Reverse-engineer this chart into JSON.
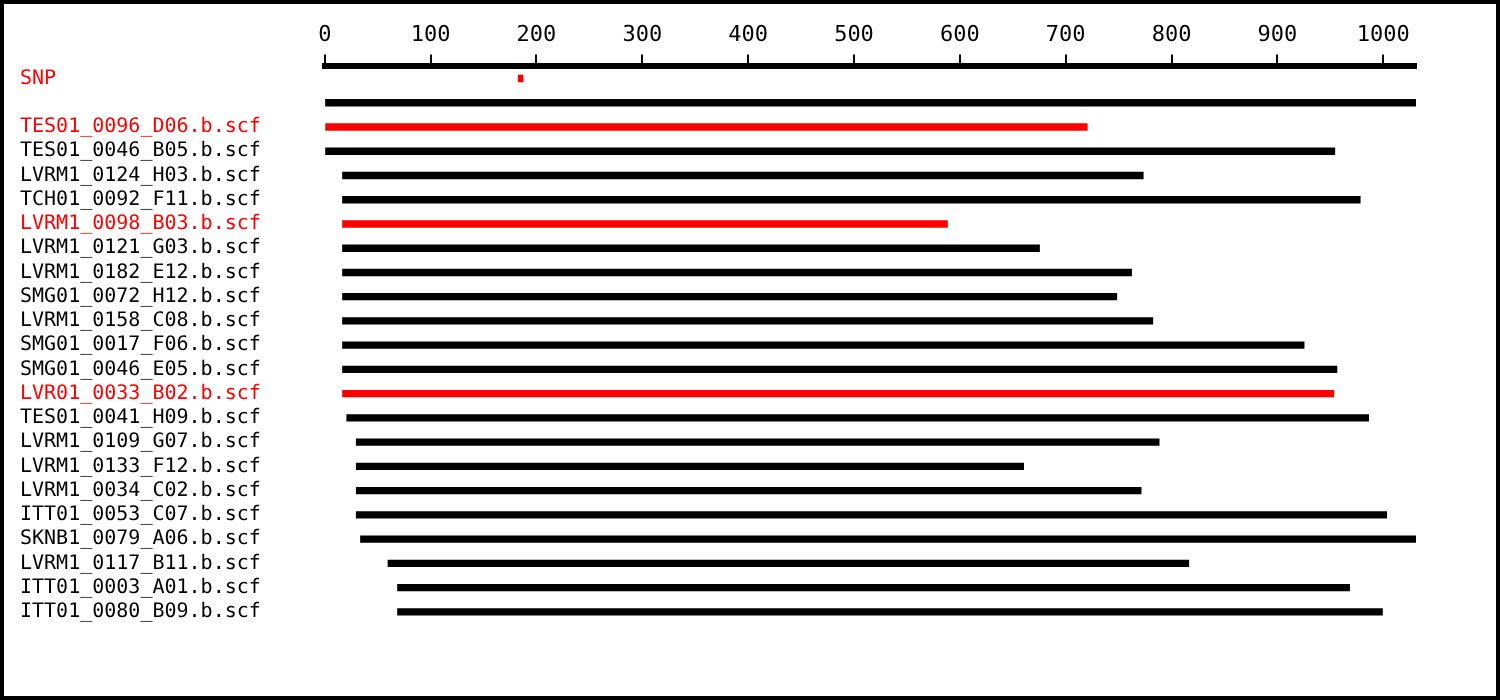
{
  "chart_data": {
    "type": "bar",
    "orientation": "horizontal",
    "categories": [
      "SNP",
      null,
      "TES01_0096_D06.b.scf",
      "TES01_0046_B05.b.scf",
      "LVRM1_0124_H03.b.scf",
      "TCH01_0092_F11.b.scf",
      "LVRM1_0098_B03.b.scf",
      "LVRM1_0121_G03.b.scf",
      "LVRM1_0182_E12.b.scf",
      "SMG01_0072_H12.b.scf",
      "LVRM1_0158_C08.b.scf",
      "SMG01_0017_F06.b.scf",
      "SMG01_0046_E05.b.scf",
      "LVR01_0033_B02.b.scf",
      "TES01_0041_H09.b.scf",
      "LVRM1_0109_G07.b.scf",
      "LVRM1_0133_F12.b.scf",
      "LVRM1_0034_C02.b.scf",
      "ITT01_0053_C07.b.scf",
      "SKNB1_0079_A06.b.scf",
      "LVRM1_0117_B11.b.scf",
      "ITT01_0003_A01.b.scf",
      "ITT01_0080_B09.b.scf"
    ],
    "base": [
      183,
      0,
      1,
      1,
      17,
      17,
      17,
      17,
      17,
      17,
      17,
      17,
      17,
      17,
      21,
      30,
      30,
      30,
      30,
      34,
      60,
      69,
      69
    ],
    "values": [
      4,
      1031,
      719,
      953,
      756,
      961,
      571,
      658,
      745,
      731,
      765,
      908,
      939,
      936,
      965,
      758,
      630,
      741,
      973,
      997,
      756,
      899,
      930
    ],
    "colors": [
      "#ff0000",
      "#000000",
      "#ff0000",
      "#000000",
      "#000000",
      "#000000",
      "#ff0000",
      "#000000",
      "#000000",
      "#000000",
      "#000000",
      "#000000",
      "#000000",
      "#ff0000",
      "#000000",
      "#000000",
      "#000000",
      "#000000",
      "#000000",
      "#000000",
      "#000000",
      "#000000",
      "#000000"
    ],
    "xlim": [
      0,
      1031
    ],
    "xticks": [
      0,
      100,
      200,
      300,
      400,
      500,
      600,
      700,
      800,
      900,
      1000
    ],
    "grid": false,
    "legend": false
  }
}
